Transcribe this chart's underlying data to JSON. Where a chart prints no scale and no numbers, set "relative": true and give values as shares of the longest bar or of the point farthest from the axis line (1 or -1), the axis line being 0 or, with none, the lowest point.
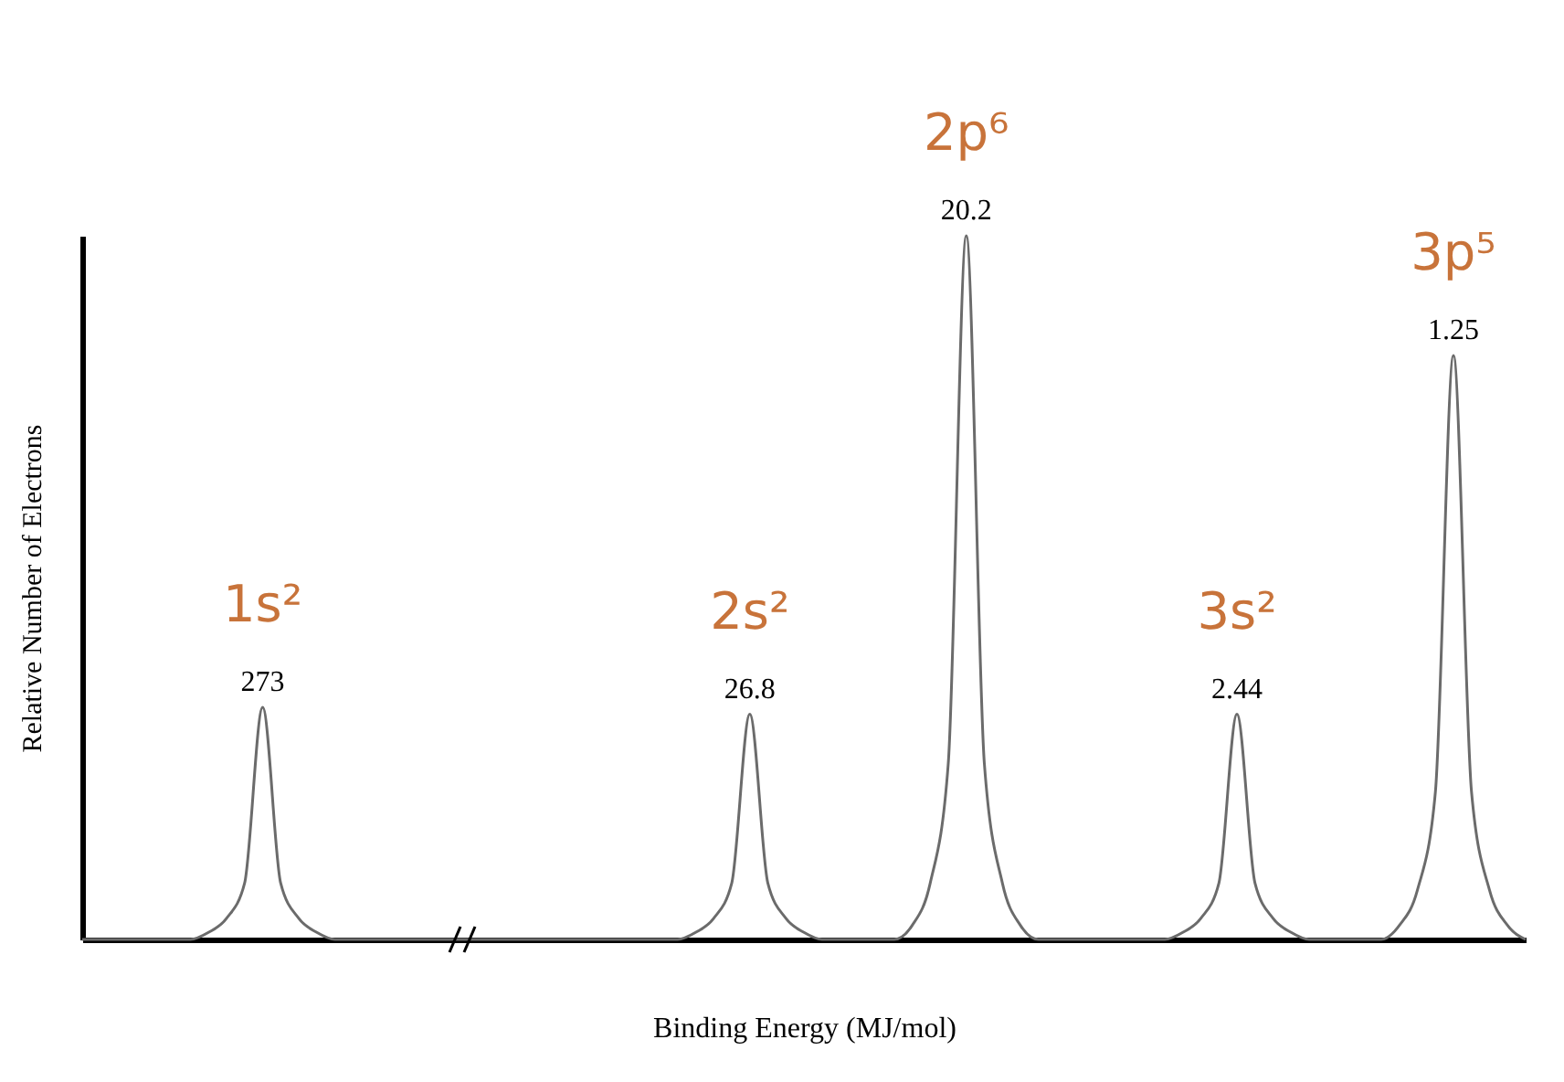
{
  "chart_data": {
    "type": "line",
    "relative": true,
    "xlabel": "Binding Energy (MJ/mol)",
    "ylabel": "Relative Number of Electrons",
    "color": "#6b6b6b",
    "marker": "none",
    "categories": [
      null,
      null,
      null,
      null,
      null,
      null,
      null,
      null,
      null,
      null,
      null,
      null,
      null,
      null,
      null,
      null,
      null,
      null,
      null,
      null,
      null,
      null,
      null,
      null,
      null,
      null,
      null,
      null,
      null,
      null,
      null,
      null,
      null,
      null,
      null,
      null,
      null,
      null,
      null,
      null,
      null,
      null,
      null,
      null,
      null,
      null,
      null,
      null,
      null,
      null,
      null,
      null,
      null,
      null,
      null,
      null,
      null,
      null,
      null,
      null,
      null,
      null,
      null,
      null,
      null,
      null,
      null,
      null,
      null,
      null,
      null,
      null,
      null,
      null,
      null,
      null,
      null,
      null,
      null,
      null,
      null
    ],
    "values": [
      0,
      0,
      0,
      0,
      0,
      0,
      0,
      0.01,
      0.03,
      0.08,
      0.33,
      0.08,
      0.03,
      0.01,
      0,
      0,
      0,
      0,
      0,
      0,
      0,
      0,
      0,
      0,
      0,
      0,
      0,
      0,
      0,
      0,
      0,
      0,
      0,
      0,
      0.01,
      0.03,
      0.08,
      0.32,
      0.08,
      0.03,
      0.01,
      0,
      0,
      0,
      0,
      0,
      0.02,
      0.08,
      0.25,
      1,
      0.25,
      0.08,
      0.02,
      0,
      0,
      0,
      0,
      0,
      0,
      0,
      0,
      0.01,
      0.03,
      0.08,
      0.32,
      0.08,
      0.03,
      0.01,
      0,
      0,
      0,
      0,
      0,
      0.02,
      0.07,
      0.21,
      0.83,
      0.21,
      0.07,
      0.02,
      0
    ],
    "annotations": [
      "1s²",
      "273",
      "2s²",
      "26.8",
      "2p⁶",
      "20.2",
      "3s²",
      "2.44",
      "3p⁵",
      "1.25"
    ]
  }
}
